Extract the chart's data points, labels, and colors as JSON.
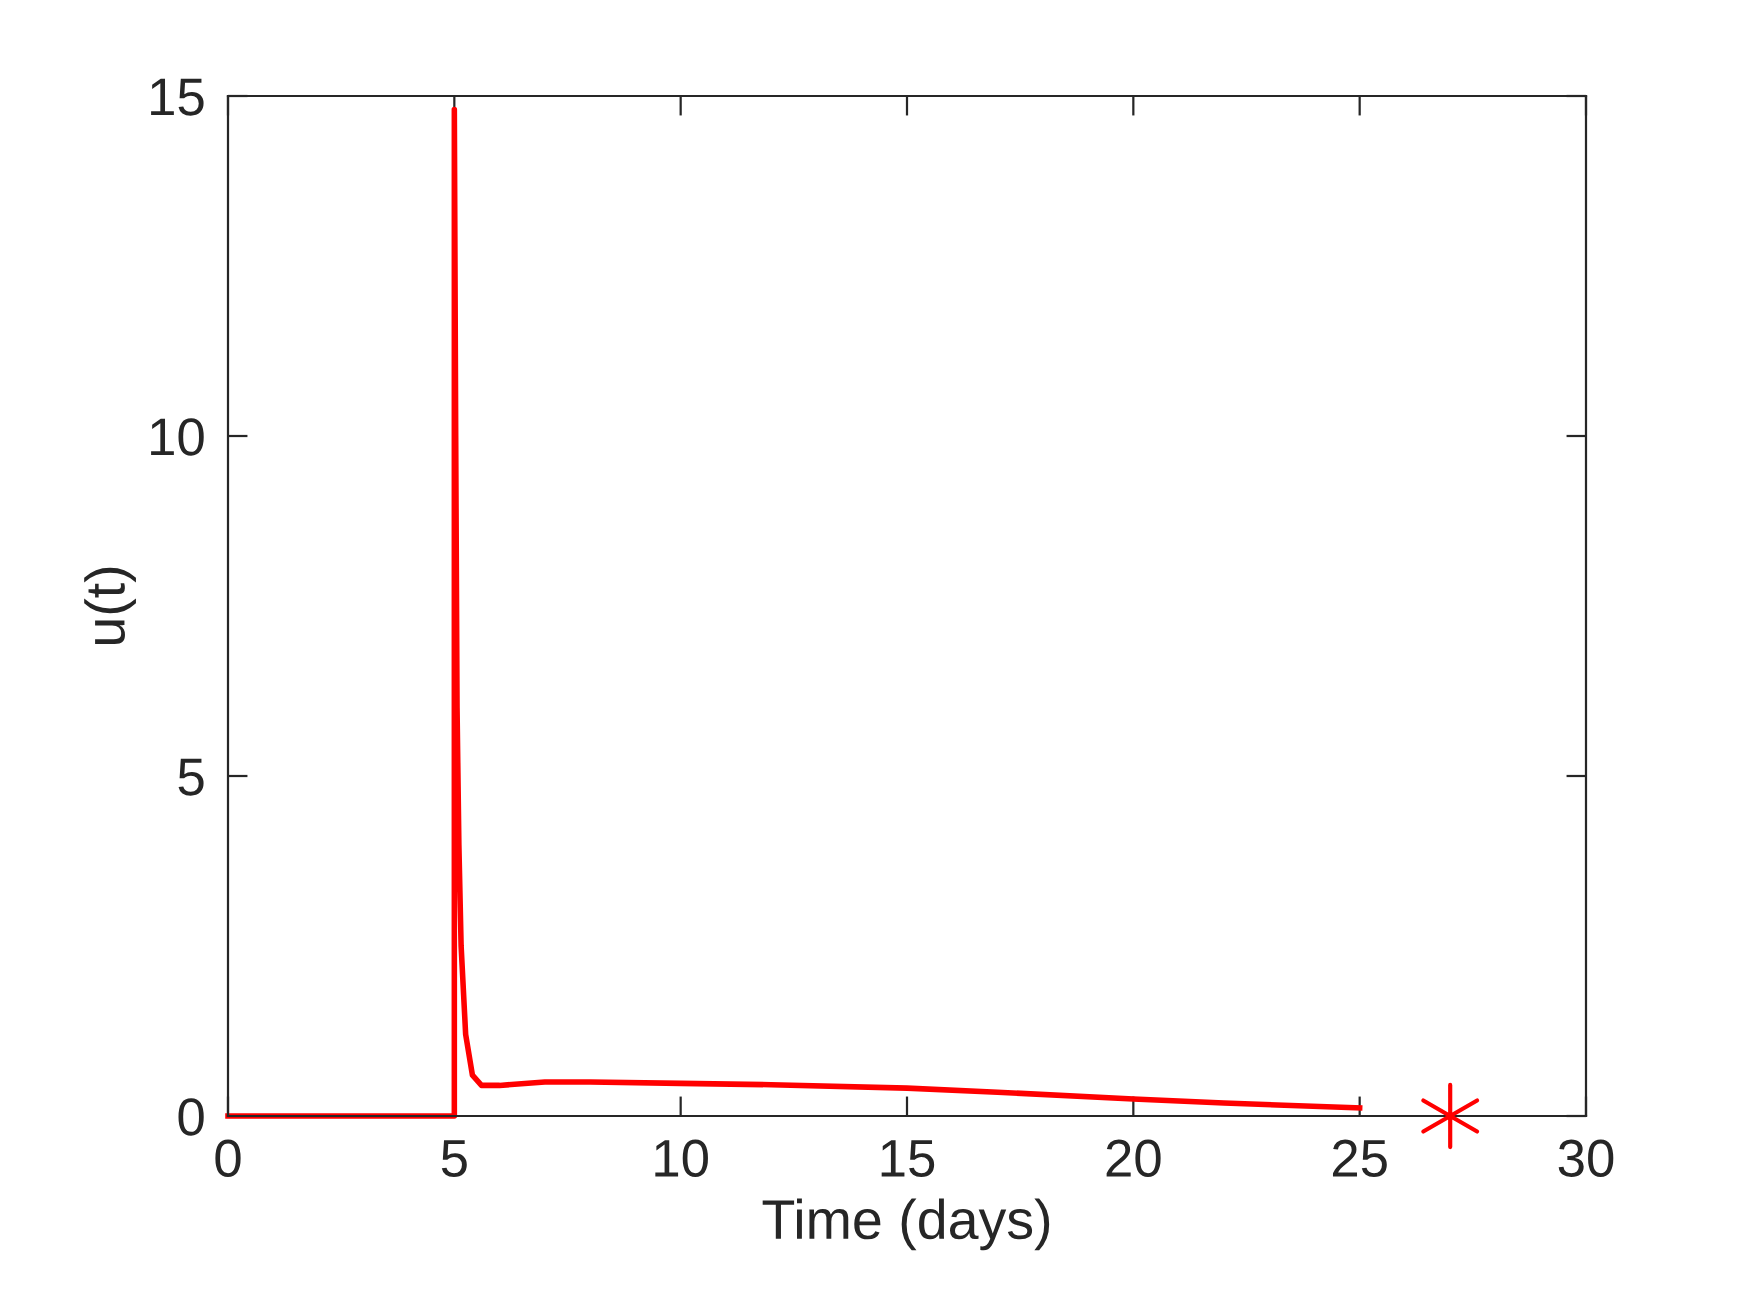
{
  "chart_data": {
    "type": "line",
    "xlabel": "Time (days)",
    "ylabel": "u(t)",
    "xlim": [
      0,
      30
    ],
    "ylim": [
      0,
      15
    ],
    "xticks": [
      0,
      5,
      10,
      15,
      20,
      25,
      30
    ],
    "yticks": [
      0,
      5,
      10,
      15
    ],
    "grid": false,
    "legend": false,
    "series": [
      {
        "color": "#ff0000",
        "marker": "none",
        "line_style": "solid",
        "x": [
          0,
          5,
          5,
          5.03,
          5.06,
          5.1,
          5.15,
          5.25,
          5.4,
          5.6,
          6,
          7,
          8,
          10,
          12,
          15,
          17,
          20,
          22,
          25
        ],
        "values": [
          0,
          0,
          14.8,
          10,
          6,
          4,
          2.5,
          1.2,
          0.6,
          0.45,
          0.45,
          0.5,
          0.5,
          0.48,
          0.46,
          0.41,
          0.35,
          0.25,
          0.19,
          0.12
        ]
      },
      {
        "type": "scatter",
        "color": "#ff0000",
        "marker": "cross",
        "x": [
          27
        ],
        "values": [
          0
        ]
      }
    ]
  }
}
